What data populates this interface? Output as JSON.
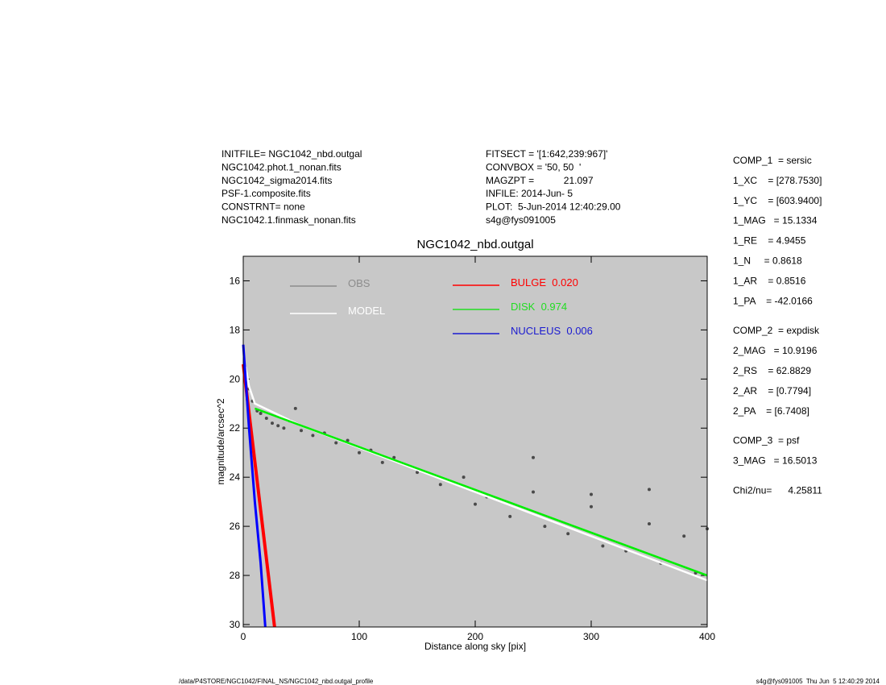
{
  "header": {
    "left": [
      "INITFILE= NGC1042_nbd.outgal",
      "NGC1042.phot.1_nonan.fits",
      "NGC1042_sigma2014.fits",
      "PSF-1.composite.fits",
      "CONSTRNT= none",
      "NGC1042.1.finmask_nonan.fits"
    ],
    "middle": [
      "FITSECT = '[1:642,239:967]'",
      "CONVBOX = '50, 50  '",
      "MAGZPT =           21.097",
      "INFILE: 2014-Jun- 5",
      "PLOT:  5-Jun-2014 12:40:29.00",
      "s4g@fys091005"
    ]
  },
  "parameters": [
    [
      "COMP_1  = sersic",
      "1_XC    = [278.7530]",
      "1_YC    = [603.9400]",
      "1_MAG   = 15.1334",
      "1_RE    = 4.9455",
      "1_N     = 0.8618",
      "1_AR    = 0.8516",
      "1_PA    = -42.0166"
    ],
    [
      "COMP_2  = expdisk",
      "2_MAG   = 10.9196",
      "2_RS    = 62.8829",
      "2_AR    = [0.7794]",
      "2_PA    = [6.7408]"
    ],
    [
      "COMP_3  = psf",
      "3_MAG   = 16.5013"
    ],
    [
      "Chi2/nu=      4.25811"
    ]
  ],
  "footer": {
    "left": "/data/P4STORE/NGC1042/FINAL_NS/NGC1042_nbd.outgal_profile",
    "right": "s4g@fys091005  Thu Jun  5 12:40:29 2014"
  },
  "chart_data": {
    "type": "scatter",
    "title": "NGC1042_nbd.outgal",
    "x_label": "Distance along sky [pix]",
    "y_label": "magnitude/arcsec^2",
    "xlim": [
      0,
      400
    ],
    "xticks": [
      0,
      100,
      200,
      300,
      400
    ],
    "ylim": [
      30.1,
      15
    ],
    "yticks": [
      16,
      18,
      20,
      22,
      24,
      26,
      28,
      30
    ],
    "series": [
      {
        "name": "OBS",
        "kind": "points",
        "color": "#4a4a4a",
        "legend_color": "#8c8c8c",
        "x": [
          5,
          8,
          12,
          15,
          20,
          25,
          30,
          35,
          40,
          45,
          50,
          60,
          70,
          80,
          90,
          100,
          110,
          120,
          130,
          150,
          170,
          190,
          200,
          210,
          230,
          250,
          260,
          280,
          300,
          310,
          330,
          350,
          360,
          380,
          390,
          400,
          250,
          300,
          350
        ],
        "values": [
          20.4,
          20.9,
          21.3,
          21.4,
          21.6,
          21.8,
          21.9,
          22.0,
          21.7,
          21.2,
          22.1,
          22.3,
          22.2,
          22.6,
          22.5,
          23.0,
          22.9,
          23.4,
          23.2,
          23.8,
          24.3,
          24.0,
          25.1,
          24.8,
          25.6,
          24.6,
          26.0,
          26.3,
          25.2,
          26.8,
          27.0,
          25.9,
          27.5,
          26.4,
          27.9,
          26.1,
          23.2,
          24.7,
          24.5
        ]
      },
      {
        "name": "MODEL",
        "kind": "line",
        "color": "#ffffff",
        "legend_color": "#ffffff",
        "x": [
          2,
          5,
          10,
          50,
          100,
          200,
          300,
          400
        ],
        "values": [
          19.5,
          20.3,
          21.0,
          21.9,
          22.8,
          24.6,
          26.4,
          28.2
        ]
      },
      {
        "name": "BULGE  0.020",
        "kind": "line",
        "color": "#ff0000",
        "legend_color": "#ff0000",
        "x": [
          0,
          27
        ],
        "values": [
          19.4,
          30.1
        ]
      },
      {
        "name": "DISK  0.974",
        "kind": "line",
        "color": "#00ee00",
        "legend_color": "#22dd22",
        "x": [
          10,
          400
        ],
        "values": [
          21.2,
          28.0
        ]
      },
      {
        "name": "NUCLEUS  0.006",
        "kind": "line",
        "color": "#0000ff",
        "legend_color": "#1a1ad0",
        "x": [
          0,
          5,
          10,
          15,
          19
        ],
        "values": [
          18.6,
          22.0,
          25.0,
          27.5,
          30.1
        ]
      }
    ]
  }
}
